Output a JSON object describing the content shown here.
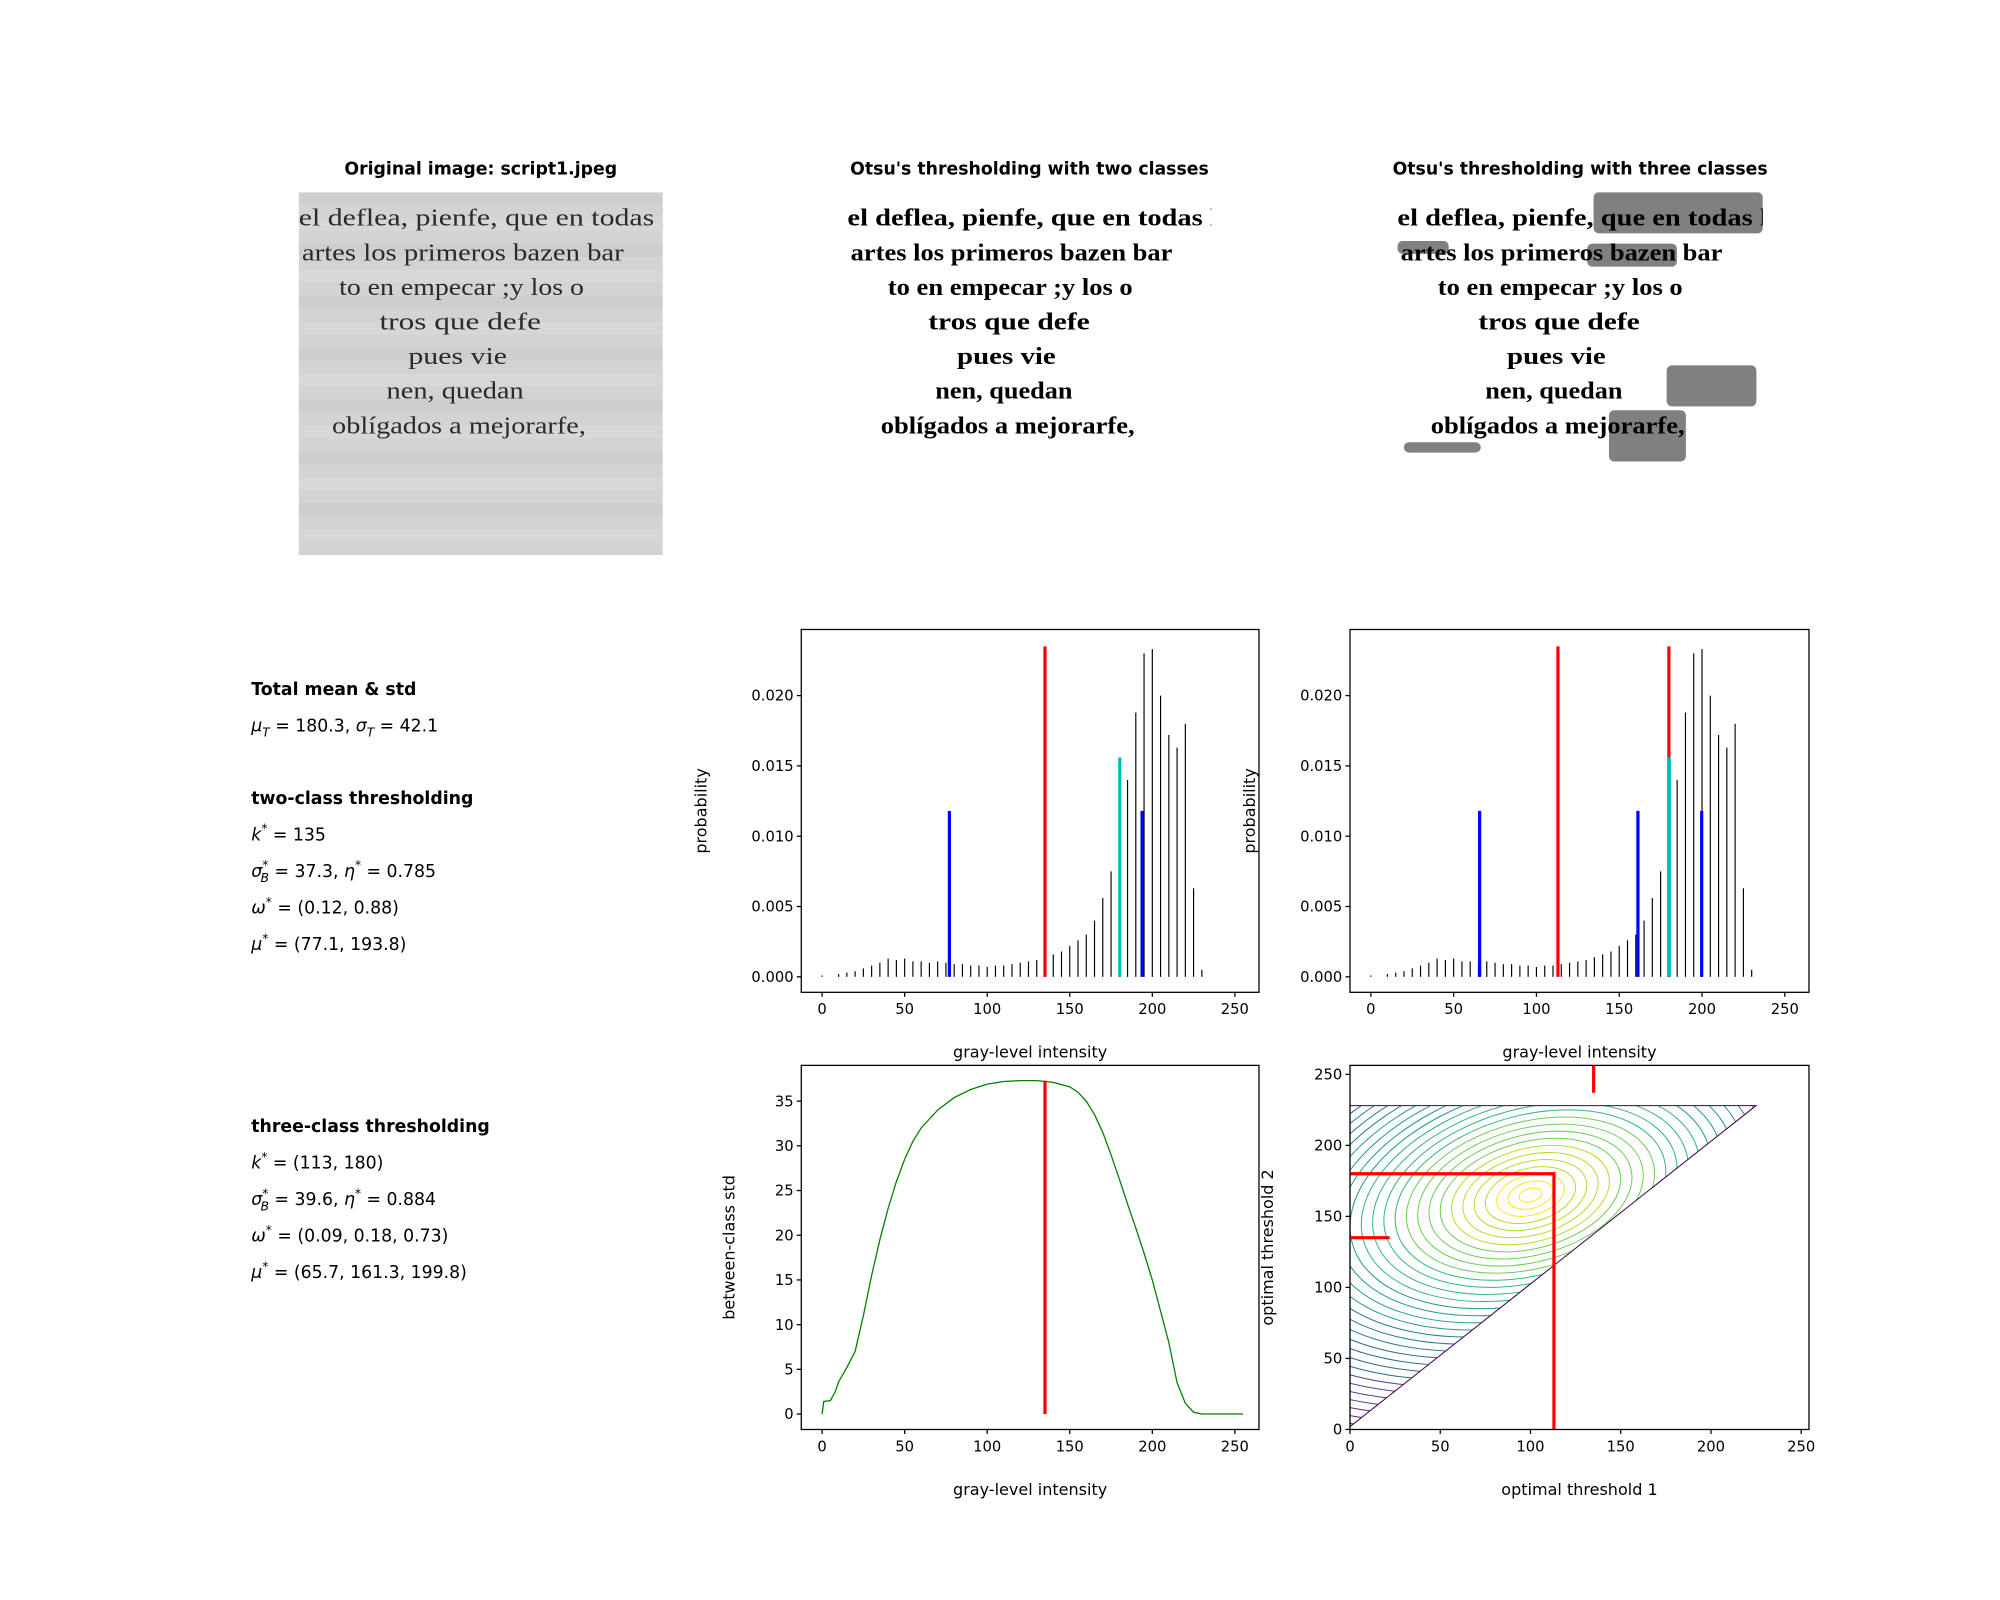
{
  "panels": [
    {
      "title": "Original image: script1.jpeg"
    },
    {
      "title": "Otsu's thresholding with two classes"
    },
    {
      "title": "Otsu's thresholding with three classes"
    }
  ],
  "scan_lines": [
    "el deflea, pienfe, que en todas la",
    "artes los primeros bazen bar",
    "to en empecar ;y los o",
    "tros que defe",
    "pues vie",
    "nen, quedan",
    "oblígados a mejorarfe,"
  ],
  "stats": [
    {
      "heading": "Total mean & std",
      "lines": [
        [
          {
            "t": "μ",
            "sub": "T"
          },
          {
            "t": " = 180.3, "
          },
          {
            "t": "σ",
            "sub": "T"
          },
          {
            "t": " = 42.1"
          }
        ]
      ]
    },
    {
      "heading": "two-class thresholding",
      "lines": [
        [
          {
            "t": "k",
            "sup": "*"
          },
          {
            "t": " = 135"
          }
        ],
        [
          {
            "t": "σ",
            "sup": "*",
            "sub": "B"
          },
          {
            "t": " = 37.3, "
          },
          {
            "t": "η",
            "sup": "*"
          },
          {
            "t": " = 0.785"
          }
        ],
        [
          {
            "t": "ω",
            "sup": "*"
          },
          {
            "t": " = (0.12, 0.88)"
          }
        ],
        [
          {
            "t": "μ",
            "sup": "*"
          },
          {
            "t": " = (77.1, 193.8)"
          }
        ]
      ]
    },
    {
      "heading": "three-class thresholding",
      "lines": [
        [
          {
            "t": "k",
            "sup": "*"
          },
          {
            "t": " = (113, 180)"
          }
        ],
        [
          {
            "t": "σ",
            "sup": "*",
            "sub": "B"
          },
          {
            "t": " = 39.6, "
          },
          {
            "t": "η",
            "sup": "*"
          },
          {
            "t": " = 0.884"
          }
        ],
        [
          {
            "t": "ω",
            "sup": "*"
          },
          {
            "t": " = (0.09, 0.18, 0.73)"
          }
        ],
        [
          {
            "t": "μ",
            "sup": "*"
          },
          {
            "t": " = (65.7, 161.3, 199.8)"
          }
        ]
      ]
    }
  ],
  "chart_data": [
    {
      "type": "stem",
      "color": "#000000",
      "x": [
        0,
        10,
        15,
        20,
        25,
        30,
        35,
        40,
        45,
        50,
        55,
        60,
        65,
        70,
        75,
        80,
        85,
        90,
        95,
        100,
        105,
        110,
        115,
        120,
        125,
        130,
        135,
        140,
        145,
        150,
        155,
        160,
        165,
        170,
        175,
        180,
        185,
        190,
        195,
        200,
        205,
        210,
        215,
        220,
        225,
        230
      ],
      "values": [
        0.0001,
        0.0002,
        0.0003,
        0.0004,
        0.0006,
        0.0008,
        0.001,
        0.0013,
        0.0012,
        0.0013,
        0.0011,
        0.0011,
        0.001,
        0.0011,
        0.001,
        0.0009,
        0.0009,
        0.0008,
        0.0008,
        0.0007,
        0.0008,
        0.0008,
        0.0009,
        0.001,
        0.0011,
        0.0012,
        0.0014,
        0.0016,
        0.0018,
        0.0022,
        0.0026,
        0.003,
        0.004,
        0.0056,
        0.0075,
        0.01,
        0.014,
        0.0188,
        0.023,
        0.0233,
        0.02,
        0.0172,
        0.0163,
        0.018,
        0.0063,
        0.0005
      ],
      "xlim": [
        -12.6,
        264.6
      ],
      "ylim": [
        -0.0011,
        0.0247
      ],
      "xticks": [
        0,
        50,
        100,
        150,
        200,
        250
      ],
      "yticks": [
        {
          "value": 0,
          "label": "0.000"
        },
        0.005,
        {
          "value": 0.01,
          "label": "0.010"
        },
        0.015,
        {
          "value": 0.02,
          "label": "0.020"
        }
      ],
      "xlabel": "gray-level intensity",
      "ylabel": "probability",
      "vlines": [
        {
          "x": 135,
          "y": 0.0235,
          "color": "#ff0000"
        },
        {
          "x": 180.3,
          "y": 0.0156,
          "color": "#00bfbf"
        },
        {
          "x": 77.1,
          "y": 0.0118,
          "color": "#0000ff"
        },
        {
          "x": 193.8,
          "y": 0.0118,
          "color": "#0000ff"
        }
      ]
    },
    {
      "type": "stem",
      "color": "#000000",
      "x": [
        0,
        10,
        15,
        20,
        25,
        30,
        35,
        40,
        45,
        50,
        55,
        60,
        65,
        70,
        75,
        80,
        85,
        90,
        95,
        100,
        105,
        110,
        115,
        120,
        125,
        130,
        135,
        140,
        145,
        150,
        155,
        160,
        165,
        170,
        175,
        180,
        185,
        190,
        195,
        200,
        205,
        210,
        215,
        220,
        225,
        230
      ],
      "values": [
        0.0001,
        0.0002,
        0.0003,
        0.0004,
        0.0006,
        0.0008,
        0.001,
        0.0013,
        0.0012,
        0.0013,
        0.0011,
        0.0011,
        0.001,
        0.0011,
        0.001,
        0.0009,
        0.0009,
        0.0008,
        0.0008,
        0.0007,
        0.0008,
        0.0008,
        0.0009,
        0.001,
        0.0011,
        0.0012,
        0.0014,
        0.0016,
        0.0018,
        0.0022,
        0.0026,
        0.003,
        0.004,
        0.0056,
        0.0075,
        0.01,
        0.014,
        0.0188,
        0.023,
        0.0233,
        0.02,
        0.0172,
        0.0163,
        0.018,
        0.0063,
        0.0005
      ],
      "xlim": [
        -12.6,
        264.6
      ],
      "ylim": [
        -0.0011,
        0.0247
      ],
      "xticks": [
        0,
        50,
        100,
        150,
        200,
        250
      ],
      "yticks": [
        {
          "value": 0,
          "label": "0.000"
        },
        0.005,
        {
          "value": 0.01,
          "label": "0.010"
        },
        0.015,
        {
          "value": 0.02,
          "label": "0.020"
        }
      ],
      "xlabel": "gray-level intensity",
      "ylabel": "probability",
      "vlines": [
        {
          "x": 113,
          "y": 0.0235,
          "color": "#ff0000"
        },
        {
          "x": 180,
          "y": 0.0235,
          "color": "#ff0000"
        },
        {
          "x": 180.3,
          "y": 0.0156,
          "color": "#00bfbf"
        },
        {
          "x": 65.7,
          "y": 0.0118,
          "color": "#0000ff"
        },
        {
          "x": 161.3,
          "y": 0.0118,
          "color": "#0000ff"
        },
        {
          "x": 199.8,
          "y": 0.0118,
          "color": "#0000ff"
        }
      ]
    },
    {
      "type": "line",
      "color": "#008000",
      "x": [
        0,
        1,
        5,
        8,
        10,
        15,
        20,
        25,
        30,
        35,
        40,
        45,
        50,
        55,
        60,
        70,
        80,
        90,
        100,
        110,
        120,
        130,
        140,
        150,
        155,
        160,
        165,
        170,
        175,
        180,
        185,
        190,
        195,
        200,
        205,
        210,
        215,
        220,
        225,
        230,
        255
      ],
      "values": [
        0,
        1.4,
        1.5,
        2.5,
        3.6,
        5.2,
        7,
        11,
        15.5,
        19.5,
        23,
        26,
        28.5,
        30.5,
        32,
        34,
        35.4,
        36.3,
        36.9,
        37.2,
        37.3,
        37.3,
        37.1,
        36.6,
        36,
        35,
        33.5,
        31.5,
        29,
        26.3,
        23.5,
        20.8,
        18,
        15,
        11.5,
        8,
        3.5,
        1.2,
        0.2,
        0,
        0
      ],
      "xlim": [
        -12.6,
        264.6
      ],
      "ylim": [
        -1.73,
        39
      ],
      "xticks": [
        0,
        50,
        100,
        150,
        200,
        250
      ],
      "yticks": [
        0,
        5,
        10,
        15,
        20,
        25,
        30,
        35
      ],
      "xlabel": "gray-level intensity",
      "ylabel": "between-class std",
      "vlines": [
        {
          "x": 135,
          "y": 37.3,
          "color": "#ff0000"
        }
      ]
    },
    {
      "type": "contour",
      "colormap": "viridis",
      "xlim": [
        0,
        254.3
      ],
      "ylim": [
        0,
        256.3
      ],
      "xticks": [
        0,
        50,
        100,
        150,
        200,
        250
      ],
      "yticks": [
        0,
        50,
        100,
        150,
        200,
        250
      ],
      "xlabel": "optimal threshold 1",
      "ylabel": "optimal threshold 2",
      "segments": [
        {
          "x": [
            0,
            113,
            113
          ],
          "y": [
            180,
            180,
            0
          ],
          "color": "#ff0000"
        },
        {
          "x": [
            135,
            135
          ],
          "y": [
            237,
            256.3
          ],
          "color": "#ff0000"
        },
        {
          "x": [
            0,
            22
          ],
          "y": [
            135,
            135
          ],
          "color": "#ff0000"
        }
      ]
    }
  ]
}
